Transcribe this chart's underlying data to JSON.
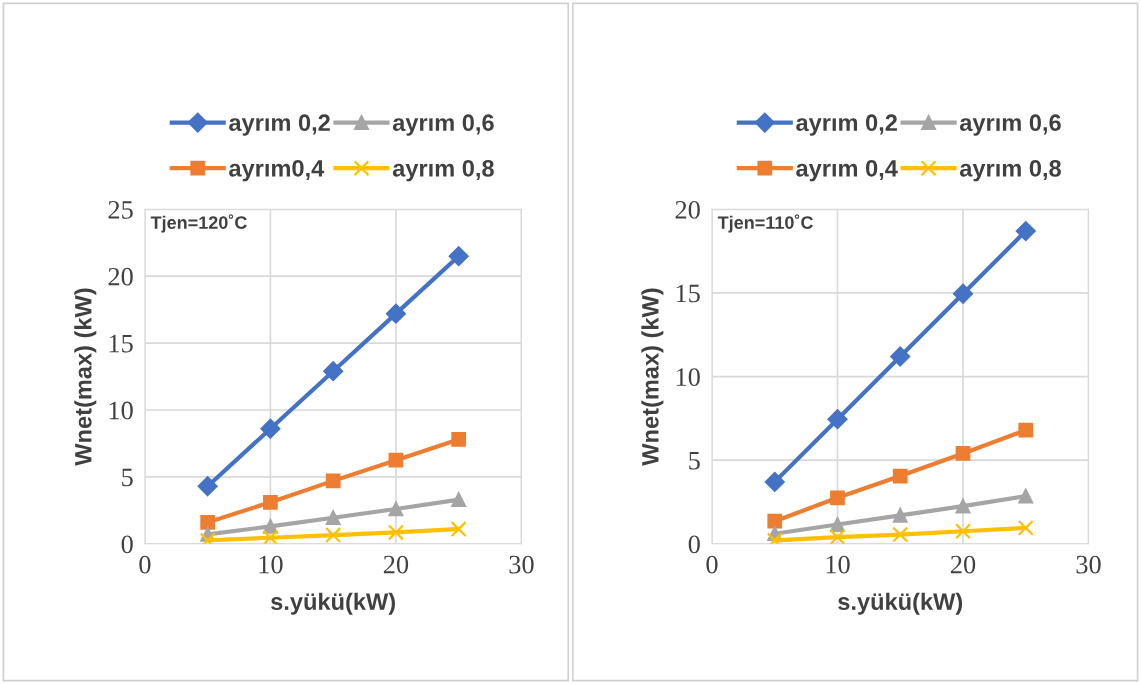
{
  "chart_data": [
    {
      "type": "line",
      "xlabel": "s.yükü(kW)",
      "ylabel": "Wnet(max) (kW)",
      "annotations": [
        "Tjen=120˚C"
      ],
      "x": [
        5,
        10,
        15,
        20,
        25
      ],
      "xlim": [
        0,
        30
      ],
      "xticks": [
        0,
        10,
        20,
        30
      ],
      "ylim": [
        0,
        25
      ],
      "yticks": [
        0,
        5,
        10,
        15,
        20,
        25
      ],
      "grid": true,
      "legend": "top",
      "series": [
        {
          "name": "ayrım 0,2",
          "color": "#4472c4",
          "marker": "diamond",
          "values": [
            4.3,
            8.6,
            12.9,
            17.2,
            21.5
          ]
        },
        {
          "name": "ayrım0,4",
          "color": "#ed7d31",
          "marker": "square",
          "values": [
            1.6,
            3.1,
            4.7,
            6.25,
            7.8
          ]
        },
        {
          "name": "ayrım 0,6",
          "color": "#a5a5a5",
          "marker": "triangle",
          "values": [
            0.7,
            1.3,
            1.95,
            2.6,
            3.3
          ]
        },
        {
          "name": "ayrım 0,8",
          "color": "#ffc000",
          "marker": "cross",
          "values": [
            0.25,
            0.45,
            0.65,
            0.85,
            1.1
          ]
        }
      ]
    },
    {
      "type": "line",
      "xlabel": "s.yükü(kW)",
      "ylabel": "Wnet(max) (kW)",
      "annotations": [
        "Tjen=110˚C"
      ],
      "x": [
        5,
        10,
        15,
        20,
        25
      ],
      "xlim": [
        0,
        30
      ],
      "xticks": [
        0,
        10,
        20,
        30
      ],
      "ylim": [
        0,
        20
      ],
      "yticks": [
        0,
        5,
        10,
        15,
        20
      ],
      "grid": true,
      "legend": "top",
      "series": [
        {
          "name": "ayrım 0,2",
          "color": "#4472c4",
          "marker": "diamond",
          "values": [
            3.7,
            7.45,
            11.2,
            14.95,
            18.7
          ]
        },
        {
          "name": "ayrım 0,4",
          "color": "#ed7d31",
          "marker": "square",
          "values": [
            1.35,
            2.75,
            4.05,
            5.4,
            6.8
          ]
        },
        {
          "name": "ayrım 0,6",
          "color": "#a5a5a5",
          "marker": "triangle",
          "values": [
            0.6,
            1.15,
            1.7,
            2.25,
            2.85
          ]
        },
        {
          "name": "ayrım 0,8",
          "color": "#ffc000",
          "marker": "cross",
          "values": [
            0.2,
            0.4,
            0.55,
            0.75,
            0.95
          ]
        }
      ]
    }
  ]
}
